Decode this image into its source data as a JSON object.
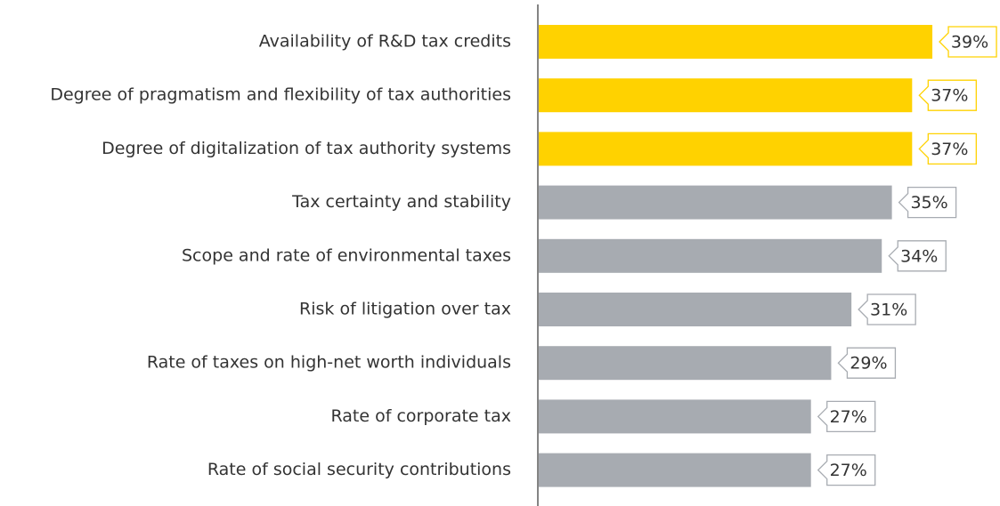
{
  "chart_data": {
    "type": "bar",
    "orientation": "horizontal",
    "categories": [
      "Availability of R&D tax credits",
      "Degree of pragmatism and flexibility of tax authorities",
      "Degree of digitalization of tax authority systems",
      "Tax certainty and stability",
      "Scope and rate of environmental taxes",
      "Risk of litigation over tax",
      "Rate of taxes on high-net worth individuals",
      "Rate of corporate tax",
      "Rate of social security contributions"
    ],
    "values": [
      39,
      37,
      37,
      35,
      34,
      31,
      29,
      27,
      27
    ],
    "value_labels": [
      "39%",
      "37%",
      "37%",
      "35%",
      "34%",
      "31%",
      "29%",
      "27%",
      "27%"
    ],
    "colors": [
      "#ffd200",
      "#ffd200",
      "#ffd200",
      "#a7abb1",
      "#a7abb1",
      "#a7abb1",
      "#a7abb1",
      "#a7abb1",
      "#a7abb1"
    ]
  }
}
